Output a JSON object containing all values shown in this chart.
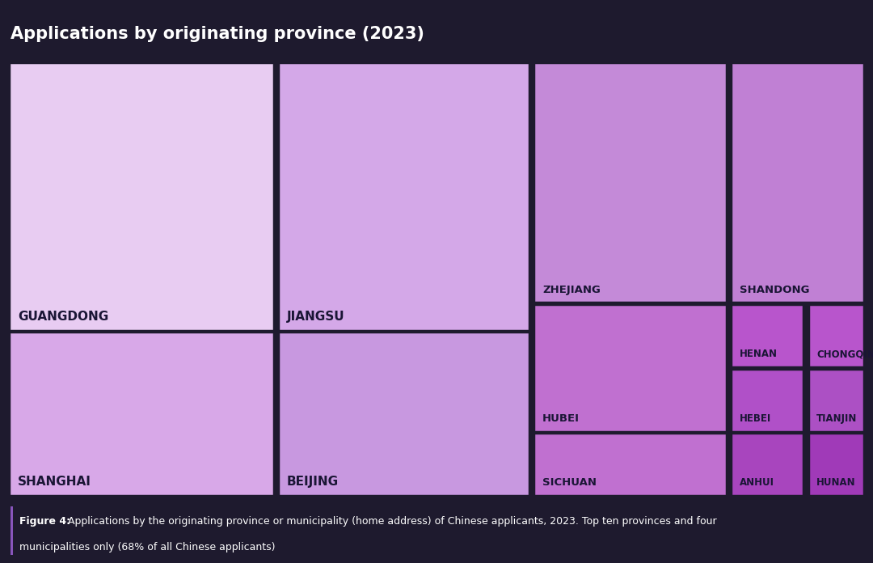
{
  "title": "Applications by originating province (2023)",
  "caption_bold": "Figure 4:",
  "caption_text": " Applications by the originating province or municipality (home address) of Chinese applicants, 2023. Top ten provinces and four municipalities only (68% of all Chinese applicants)",
  "background_color": "#1e1a2e",
  "title_color": "#ffffff",
  "caption_color": "#ffffff",
  "label_color": "#1a1535",
  "border_color": "#1e1a2e",
  "colors": {
    "GUANGDONG": "#e8ccf2",
    "JIANGSU": "#d4a8e8",
    "ZHEJIANG": "#c48ad8",
    "SHANDONG": "#c080d4",
    "SHANGHAI": "#d8a8e8",
    "BEIJING": "#c898e0",
    "HUBEI": "#c070d0",
    "SICHUAN": "#c070d0",
    "HENAN": "#b855cc",
    "CHONGQING": "#b855cc",
    "HEBEI": "#b050c8",
    "TIANJIN": "#ac50c4",
    "ANHUI": "#a845be",
    "HUNAN": "#a03ab8"
  },
  "layout": {
    "GUANGDONG": [
      0.0,
      0.38,
      0.312,
      0.62
    ],
    "SHANGHAI": [
      0.0,
      0.0,
      0.312,
      0.38
    ],
    "JIANGSU": [
      0.314,
      0.38,
      0.296,
      0.62
    ],
    "BEIJING": [
      0.314,
      0.0,
      0.296,
      0.38
    ],
    "ZHEJIANG": [
      0.612,
      0.444,
      0.228,
      0.556
    ],
    "SHANDONG": [
      0.842,
      0.444,
      0.158,
      0.556
    ],
    "HUBEI": [
      0.612,
      0.148,
      0.228,
      0.296
    ],
    "SICHUAN": [
      0.612,
      0.0,
      0.228,
      0.148
    ],
    "HENAN": [
      0.842,
      0.296,
      0.088,
      0.148
    ],
    "CHONGQING": [
      0.932,
      0.296,
      0.068,
      0.148
    ],
    "HEBEI": [
      0.842,
      0.148,
      0.088,
      0.148
    ],
    "TIANJIN": [
      0.932,
      0.148,
      0.068,
      0.148
    ],
    "ANHUI": [
      0.842,
      0.0,
      0.088,
      0.148
    ],
    "HUNAN": [
      0.932,
      0.0,
      0.068,
      0.148
    ]
  },
  "large_labels": [
    "GUANGDONG",
    "SHANGHAI",
    "JIANGSU",
    "BEIJING"
  ],
  "medium_labels": [
    "ZHEJIANG",
    "SHANDONG",
    "HUBEI",
    "SICHUAN"
  ],
  "small_labels": [
    "HENAN",
    "CHONGQING",
    "HEBEI",
    "TIANJIN",
    "ANHUI",
    "HUNAN"
  ]
}
